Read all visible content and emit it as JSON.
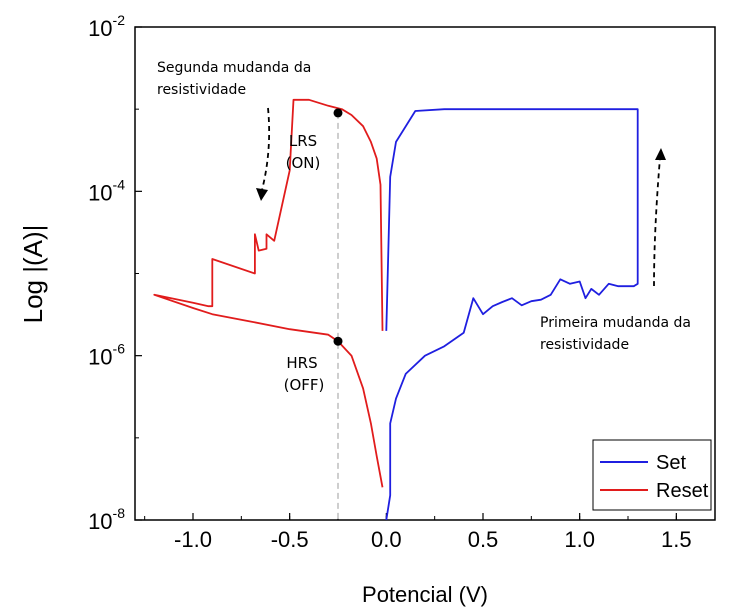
{
  "chart_data": {
    "type": "line",
    "title": "",
    "xlabel": "Potencial (V)",
    "ylabel": "Log |(A)|",
    "xlim": [
      -1.3,
      1.7
    ],
    "ylim": [
      1e-08,
      0.01
    ],
    "yscale": "log",
    "x_ticks": [
      "-1.0",
      "-0.5",
      "0.0",
      "0.5",
      "1.0",
      "1.5"
    ],
    "y_ticks": [
      {
        "base": "10",
        "exp": "-2",
        "value": 0.01
      },
      {
        "base": "10",
        "exp": "-4",
        "value": 0.0001
      },
      {
        "base": "10",
        "exp": "-6",
        "value": 1e-06
      },
      {
        "base": "10",
        "exp": "-8",
        "value": 1e-08
      }
    ],
    "legend": {
      "placement": "bottom-right"
    },
    "series": [
      {
        "name": "Set",
        "color": "#1f1fe0",
        "x": [
          0.0,
          0.02,
          0.02,
          0.05,
          0.1,
          0.2,
          0.3,
          0.4,
          0.45,
          0.5,
          0.55,
          0.6,
          0.65,
          0.7,
          0.75,
          0.8,
          0.85,
          0.9,
          0.95,
          1.0,
          1.03,
          1.06,
          1.1,
          1.15,
          1.2,
          1.25,
          1.28,
          1.3,
          1.3,
          1.28,
          1.2,
          1.0,
          0.8,
          0.6,
          0.4,
          0.3,
          0.15,
          0.05,
          0.02,
          0.0
        ],
        "y": [
          1e-08,
          2e-08,
          1.5e-07,
          3e-07,
          6e-07,
          1e-06,
          1.3e-06,
          1.9e-06,
          5e-06,
          3.2e-06,
          4e-06,
          4.5e-06,
          5e-06,
          4.1e-06,
          4.6e-06,
          4.8e-06,
          5.5e-06,
          8.5e-06,
          7.5e-06,
          8e-06,
          5e-06,
          6.5e-06,
          5.5e-06,
          7.5e-06,
          7e-06,
          7e-06,
          7e-06,
          7.5e-06,
          0.001,
          0.001,
          0.001,
          0.001,
          0.001,
          0.001,
          0.001,
          0.001,
          0.00095,
          0.0004,
          0.00015,
          2e-06
        ]
      },
      {
        "name": "Reset",
        "color": "#e11c1c",
        "x": [
          -0.02,
          -0.03,
          -0.05,
          -0.08,
          -0.12,
          -0.18,
          -0.23,
          -0.3,
          -0.4,
          -0.48,
          -0.5,
          -0.58,
          -0.62,
          -0.62,
          -0.66,
          -0.68,
          -0.68,
          -0.9,
          -0.9,
          -0.92,
          -1.0,
          -1.2,
          -1.0,
          -0.9,
          -0.7,
          -0.5,
          -0.3,
          -0.25,
          -0.18,
          -0.12,
          -0.08,
          -0.05,
          -0.02
        ],
        "y": [
          2e-06,
          0.00012,
          0.00025,
          0.0004,
          0.00062,
          0.00085,
          0.001,
          0.0011,
          0.0013,
          0.0013,
          0.00018,
          2.5e-05,
          3e-05,
          2e-05,
          1.9e-05,
          3e-05,
          1e-05,
          1.5e-05,
          4e-06,
          4e-06,
          4.4e-06,
          5.5e-06,
          3.8e-06,
          3.2e-06,
          2.6e-06,
          2.1e-06,
          1.8e-06,
          1.5e-06,
          1e-06,
          4e-07,
          1.5e-07,
          6e-08,
          2.5e-08
        ]
      }
    ],
    "markers": [
      {
        "x": -0.25,
        "y": 0.0009,
        "label1": "LRS",
        "label2": "(ON)"
      },
      {
        "x": -0.25,
        "y": 1.5e-06,
        "label1": "HRS",
        "label2": "(OFF)"
      }
    ],
    "annotations": [
      {
        "line1": "Segunda mudanda da",
        "line2": "resistividade"
      },
      {
        "line1": "Primeira mudanda da",
        "line2": "resistividade"
      }
    ]
  }
}
